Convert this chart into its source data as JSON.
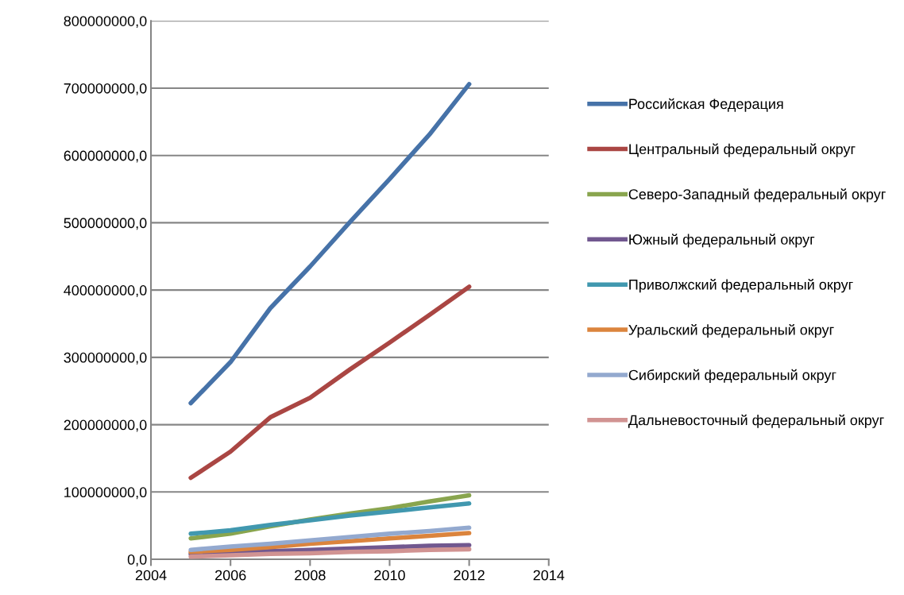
{
  "chart_data": {
    "type": "line",
    "x": [
      2005,
      2006,
      2007,
      2008,
      2009,
      2010,
      2011,
      2012
    ],
    "series": [
      {
        "name": "Российская Федерация",
        "color": "#4672a8",
        "values": [
          232000000,
          293000000,
          373000000,
          435000000,
          501000000,
          565000000,
          631000000,
          706000000
        ]
      },
      {
        "name": "Центральный федеральный округ",
        "color": "#aa4643",
        "values": [
          121000000,
          160000000,
          211000000,
          240000000,
          282000000,
          322000000,
          363000000,
          405000000
        ]
      },
      {
        "name": "Северо-Западный федеральный округ",
        "color": "#89a54e",
        "values": [
          31000000,
          38000000,
          49000000,
          59000000,
          68000000,
          76000000,
          86000000,
          95000000
        ]
      },
      {
        "name": "Южный федеральный округ",
        "color": "#71588f",
        "values": [
          8000000,
          10000000,
          12000000,
          14000000,
          16000000,
          18000000,
          20000000,
          21000000
        ]
      },
      {
        "name": "Приволжский федеральный округ",
        "color": "#4198af",
        "values": [
          38000000,
          43000000,
          51000000,
          58000000,
          65000000,
          71000000,
          77000000,
          83000000
        ]
      },
      {
        "name": "Уральский федеральный округ",
        "color": "#db843d",
        "values": [
          11000000,
          14000000,
          18000000,
          23000000,
          27000000,
          31000000,
          35000000,
          39000000
        ]
      },
      {
        "name": "Сибирский федеральный округ",
        "color": "#93a9cf",
        "values": [
          14000000,
          19000000,
          23000000,
          28000000,
          33000000,
          38000000,
          42000000,
          47000000
        ]
      },
      {
        "name": "Дальневосточный федеральный округ",
        "color": "#d19392",
        "values": [
          4000000,
          6000000,
          8000000,
          9000000,
          11000000,
          12000000,
          14000000,
          15000000
        ]
      }
    ],
    "xlim": [
      2004,
      2014
    ],
    "xticks": [
      2004,
      2006,
      2008,
      2010,
      2012,
      2014
    ],
    "ylim": [
      0,
      800000000
    ],
    "yticks": [
      {
        "value": 0,
        "label": "0,0"
      },
      {
        "value": 100000000,
        "label": "100000000,0"
      },
      {
        "value": 200000000,
        "label": "200000000,0"
      },
      {
        "value": 300000000,
        "label": "300000000,0"
      },
      {
        "value": 400000000,
        "label": "400000000,0"
      },
      {
        "value": 500000000,
        "label": "500000000,0"
      },
      {
        "value": 600000000,
        "label": "600000000,0"
      },
      {
        "value": 700000000,
        "label": "700000000,0"
      },
      {
        "value": 800000000,
        "label": "800000000,0"
      }
    ],
    "grid": "y",
    "legend": "right",
    "marker": "none",
    "line_style": "solid"
  }
}
